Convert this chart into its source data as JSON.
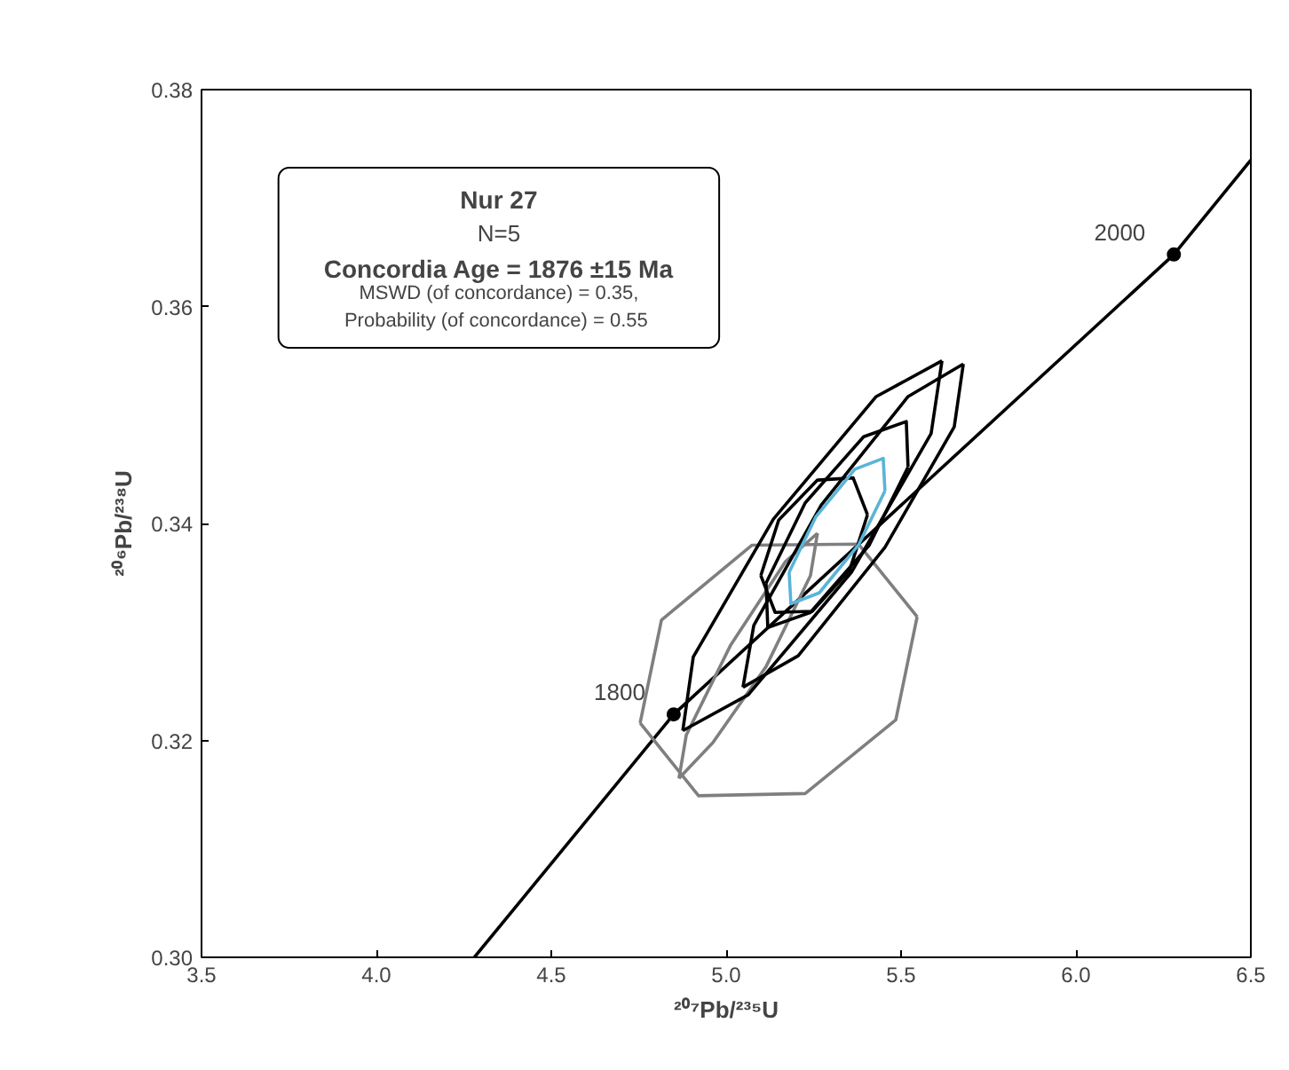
{
  "chart_data": {
    "type": "line",
    "xlabel": "²⁰⁷Pb/²³⁵U",
    "ylabel": "²⁰⁶Pb/²³⁸U",
    "xlim": [
      3.5,
      6.5
    ],
    "ylim": [
      0.3,
      0.38
    ],
    "xticks": [
      {
        "value": 3.5,
        "label": "3.5"
      },
      {
        "value": 4.0,
        "label": "4.0"
      },
      {
        "value": 4.5,
        "label": "4.5"
      },
      {
        "value": 5.0,
        "label": "5.0"
      },
      {
        "value": 5.5,
        "label": "5.5"
      },
      {
        "value": 6.0,
        "label": "6.0"
      },
      {
        "value": 6.5,
        "label": "6.5"
      }
    ],
    "yticks": [
      {
        "value": 0.3,
        "label": "0.30"
      },
      {
        "value": 0.32,
        "label": "0.32"
      },
      {
        "value": 0.34,
        "label": "0.34"
      },
      {
        "value": 0.36,
        "label": "0.36"
      },
      {
        "value": 0.38,
        "label": "0.38"
      }
    ],
    "grid": false,
    "annotations": [
      "Nur 27",
      "N=5",
      "Concordia Age = 1876 ±15 Ma",
      "MSWD (of concordance) = 0.35,",
      "Probability  (of concordance) = 0.55",
      {
        "text": "1800",
        "x": 4.85,
        "y": 0.3224
      },
      {
        "text": "2000",
        "x": 6.28,
        "y": 0.3648
      }
    ],
    "series": [
      {
        "color": "#000000",
        "x": [
          4.28,
          4.85,
          6.28,
          6.5
        ],
        "values": [
          0.3,
          0.3224,
          0.3648,
          0.3735
        ]
      },
      {
        "type": "scatter",
        "color": "#000000",
        "x": [
          4.85,
          6.28
        ],
        "values": [
          0.3224,
          0.3648
        ]
      },
      {
        "color": "#7f7f7f",
        "x": [
          4.754,
          4.815,
          5.074,
          5.378,
          5.546
        ],
        "values": [
          0.3216,
          0.3311,
          0.338,
          0.3381,
          0.3314
        ]
      },
      {
        "color": "#7f7f7f",
        "x": [
          4.754,
          4.921,
          5.226,
          5.485,
          5.546
        ],
        "values": [
          0.3216,
          0.3149,
          0.3151,
          0.3219,
          0.3314
        ]
      },
      {
        "color": "#7f7f7f",
        "x": [
          4.865,
          4.886,
          5.013,
          5.17,
          5.261
        ],
        "values": [
          0.3165,
          0.3205,
          0.3288,
          0.3365,
          0.3391
        ]
      },
      {
        "color": "#7f7f7f",
        "x": [
          4.865,
          4.962,
          5.114,
          5.241,
          5.261
        ],
        "values": [
          0.3165,
          0.3198,
          0.3268,
          0.3352,
          0.3391
        ]
      },
      {
        "color": "#000000",
        "x": [
          4.876,
          4.906,
          5.135,
          5.429,
          5.617
        ],
        "values": [
          0.3209,
          0.3277,
          0.3404,
          0.3517,
          0.355
        ]
      },
      {
        "color": "#000000",
        "x": [
          4.876,
          5.063,
          5.358,
          5.586,
          5.617
        ],
        "values": [
          0.3209,
          0.3242,
          0.3355,
          0.3483,
          0.355
        ]
      },
      {
        "color": "#000000",
        "x": [
          5.048,
          5.079,
          5.272,
          5.52,
          5.678
        ],
        "values": [
          0.3249,
          0.3306,
          0.3417,
          0.3517,
          0.3547
        ]
      },
      {
        "color": "#000000",
        "x": [
          5.048,
          5.206,
          5.454,
          5.652,
          5.678
        ],
        "values": [
          0.3249,
          0.3278,
          0.3378,
          0.3489,
          0.3547
        ]
      },
      {
        "color": "#000000",
        "x": [
          5.114,
          5.226,
          5.393,
          5.515,
          5.52
        ],
        "values": [
          0.3345,
          0.3419,
          0.348,
          0.3494,
          0.3452
        ]
      },
      {
        "color": "#000000",
        "x": [
          5.114,
          5.119,
          5.241,
          5.409,
          5.52
        ],
        "values": [
          0.3345,
          0.3304,
          0.3318,
          0.338,
          0.3452
        ]
      },
      {
        "color": "#000000",
        "x": [
          5.099,
          5.15,
          5.261,
          5.363,
          5.404
        ],
        "values": [
          0.3352,
          0.3403,
          0.344,
          0.3442,
          0.3408
        ]
      },
      {
        "color": "#000000",
        "x": [
          5.099,
          5.14,
          5.246,
          5.353,
          5.404
        ],
        "values": [
          0.3352,
          0.3318,
          0.3319,
          0.3357,
          0.3408
        ]
      },
      {
        "color": "#5ab4d8",
        "x": [
          5.18,
          5.256,
          5.368,
          5.449,
          5.454
        ],
        "values": [
          0.3355,
          0.3406,
          0.345,
          0.346,
          0.343
        ]
      },
      {
        "color": "#5ab4d8",
        "x": [
          5.18,
          5.185,
          5.266,
          5.378,
          5.454
        ],
        "values": [
          0.3355,
          0.3326,
          0.3336,
          0.338,
          0.343
        ]
      }
    ]
  }
}
